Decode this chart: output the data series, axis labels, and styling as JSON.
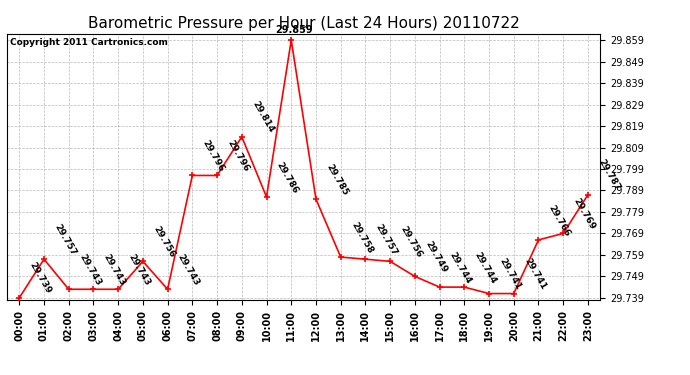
{
  "title": "Barometric Pressure per Hour (Last 24 Hours) 20110722",
  "copyright": "Copyright 2011 Cartronics.com",
  "hours": [
    "00:00",
    "01:00",
    "02:00",
    "03:00",
    "04:00",
    "05:00",
    "06:00",
    "07:00",
    "08:00",
    "09:00",
    "10:00",
    "11:00",
    "12:00",
    "13:00",
    "14:00",
    "15:00",
    "16:00",
    "17:00",
    "18:00",
    "19:00",
    "20:00",
    "21:00",
    "22:00",
    "23:00"
  ],
  "values": [
    29.739,
    29.757,
    29.743,
    29.743,
    29.743,
    29.756,
    29.743,
    29.796,
    29.796,
    29.814,
    29.786,
    29.859,
    29.785,
    29.758,
    29.757,
    29.756,
    29.749,
    29.744,
    29.744,
    29.741,
    29.741,
    29.766,
    29.769,
    29.787
  ],
  "ylim_min": 29.739,
  "ylim_max": 29.859,
  "ytick_step": 0.01,
  "line_color": "#ff0000",
  "marker_color": "#ff0000",
  "grid_color": "#aaaaaa",
  "bg_color": "#ffffff",
  "title_fontsize": 11,
  "annotation_fontsize": 6.5,
  "copyright_fontsize": 6.5,
  "peak_idx": 11,
  "peak_label_above": true
}
